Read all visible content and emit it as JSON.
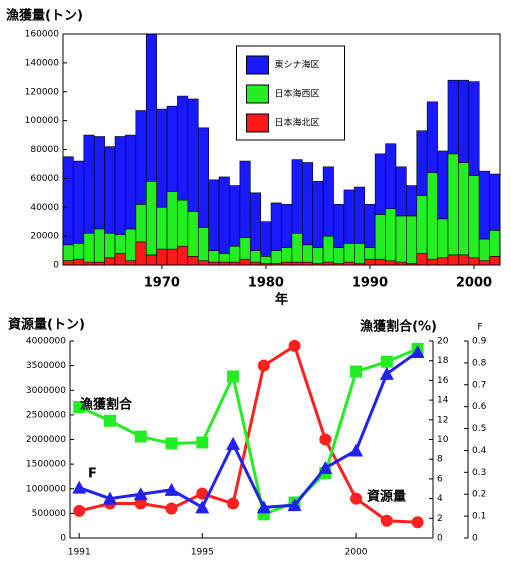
{
  "chart_data": [
    {
      "type": "bar",
      "stacked": true,
      "ylabel": "漁獲量(トン)",
      "xlabel": "年",
      "x": [
        1961,
        1962,
        1963,
        1964,
        1965,
        1966,
        1967,
        1968,
        1969,
        1970,
        1971,
        1972,
        1973,
        1974,
        1975,
        1976,
        1977,
        1978,
        1979,
        1980,
        1981,
        1982,
        1983,
        1984,
        1985,
        1986,
        1987,
        1988,
        1989,
        1990,
        1991,
        1992,
        1993,
        1994,
        1995,
        1996,
        1997,
        1998,
        1999,
        2000,
        2001,
        2002
      ],
      "xlim": [
        1960.5,
        2002.5
      ],
      "xticks": [
        1970,
        1980,
        1990,
        2000
      ],
      "ylim": [
        0,
        160000
      ],
      "yticks": [
        0,
        20000,
        40000,
        60000,
        80000,
        100000,
        120000,
        140000,
        160000
      ],
      "legend": "upper center",
      "series": [
        {
          "name": "東シナ海区",
          "color": "#1a1aff",
          "values": [
            61000,
            57000,
            68000,
            64000,
            60000,
            68000,
            65000,
            65000,
            102000,
            68000,
            59000,
            72000,
            78000,
            69000,
            49000,
            53000,
            42000,
            53000,
            40000,
            24000,
            33000,
            30000,
            51000,
            57000,
            46000,
            48000,
            30000,
            37000,
            39000,
            30000,
            42000,
            45000,
            34000,
            21000,
            45000,
            49000,
            47000,
            51000,
            57000,
            65000,
            47000,
            39000
          ]
        },
        {
          "name": "日本海西区",
          "color": "#22ee22",
          "values": [
            11000,
            11000,
            20000,
            23000,
            17000,
            13000,
            22000,
            26000,
            51000,
            29000,
            40000,
            32000,
            31000,
            23000,
            8000,
            6000,
            11000,
            15000,
            8000,
            5000,
            9000,
            10000,
            20000,
            12000,
            11000,
            18000,
            11000,
            13000,
            14000,
            8000,
            31000,
            36000,
            32000,
            33000,
            40000,
            60000,
            27000,
            70000,
            64000,
            57000,
            15000,
            18000
          ]
        },
        {
          "name": "日本海北区",
          "color": "#ff1a1a",
          "values": [
            3000,
            4000,
            2000,
            2000,
            5000,
            8000,
            3000,
            16000,
            7000,
            11000,
            11000,
            13000,
            6000,
            3000,
            2000,
            2000,
            2000,
            4000,
            2000,
            1000,
            1000,
            2000,
            2000,
            2000,
            1000,
            2000,
            1000,
            2000,
            1000,
            4000,
            4000,
            3000,
            2000,
            1000,
            8000,
            4000,
            5000,
            7000,
            7000,
            5000,
            3000,
            6000
          ]
        }
      ]
    },
    {
      "type": "line",
      "ylabel": "資源量(トン)",
      "y2label": "漁獲割合(%)",
      "y3label": "F",
      "x": [
        1991,
        1992,
        1993,
        1994,
        1995,
        1996,
        1997,
        1998,
        1999,
        2000,
        2001,
        2002
      ],
      "xlim": [
        1990.7,
        2002.5
      ],
      "xticks": [
        1991,
        1995,
        2000
      ],
      "ylim": [
        0,
        4000000
      ],
      "yticks": [
        0,
        500000,
        1000000,
        1500000,
        2000000,
        2500000,
        3000000,
        3500000,
        4000000
      ],
      "y2lim": [
        0,
        20
      ],
      "y2ticks": [
        0,
        2,
        4,
        6,
        8,
        10,
        12,
        14,
        16,
        18,
        20
      ],
      "y3lim": [
        0,
        0.9
      ],
      "y3ticks": [
        0,
        0.1,
        0.2,
        0.3,
        0.4,
        0.5,
        0.6,
        0.7,
        0.8,
        0.9
      ],
      "series": [
        {
          "name": "資源量",
          "color": "#ff2020",
          "marker": "circle",
          "values": [
            550000,
            700000,
            700000,
            600000,
            900000,
            700000,
            3500000,
            3900000,
            2000000,
            800000,
            350000,
            320000
          ]
        },
        {
          "name": "漁獲割合",
          "color": "#22ee22",
          "marker": "square",
          "axis": "y2",
          "values": [
            13.3,
            11.9,
            10.3,
            9.6,
            9.7,
            16.4,
            2.4,
            3.6,
            6.6,
            16.9,
            17.9,
            19.2
          ]
        },
        {
          "name": "F",
          "color": "#2222ee",
          "marker": "triangle",
          "axis": "y3",
          "values": [
            0.23,
            0.18,
            0.2,
            0.22,
            0.14,
            0.43,
            0.14,
            0.15,
            0.32,
            0.4,
            0.75,
            0.85
          ]
        }
      ]
    }
  ]
}
